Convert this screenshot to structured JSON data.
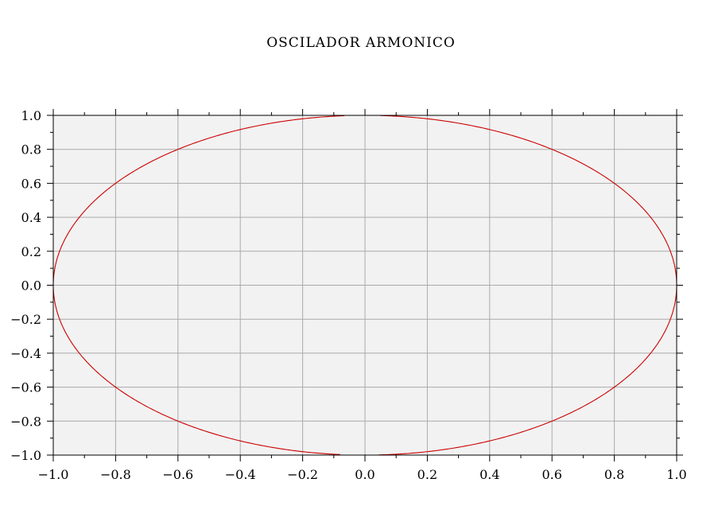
{
  "chart_data": {
    "type": "line",
    "title": "OSCILADOR ARMONICO",
    "xlabel": "",
    "ylabel": "",
    "xlim": [
      -1.0,
      1.0
    ],
    "ylim": [
      -1.0,
      1.0
    ],
    "x_ticks": [
      "−1.0",
      "−0.8",
      "−0.6",
      "−0.4",
      "−0.2",
      "0.0",
      "0.2",
      "0.4",
      "0.6",
      "0.8",
      "1.0"
    ],
    "y_ticks": [
      "1.0",
      "0.8",
      "0.6",
      "0.4",
      "0.2",
      "0.0",
      "−0.2",
      "−0.4",
      "−0.6",
      "−0.8",
      "−1.0"
    ],
    "grid": true,
    "series": [
      {
        "equation": "x^2 + y^2 = 1",
        "x": [
          1.0,
          0.951,
          0.809,
          0.588,
          0.309,
          0.0,
          -0.309,
          -0.588,
          -0.809,
          -0.951,
          -1.0,
          -0.951,
          -0.809,
          -0.588,
          -0.309,
          0.0,
          0.309,
          0.588,
          0.809,
          0.951,
          1.0
        ],
        "y": [
          0.0,
          0.309,
          0.588,
          0.809,
          0.951,
          1.0,
          0.951,
          0.809,
          0.588,
          0.309,
          0.0,
          -0.309,
          -0.588,
          -0.809,
          -0.951,
          -1.0,
          -0.951,
          -0.809,
          -0.588,
          -0.309,
          0.0
        ],
        "gaps_near_x": [
          0.0
        ],
        "color": "#cc0000"
      }
    ],
    "colors": {
      "background": "#f2f2f2",
      "grid": "#aaaaaa",
      "axis": "#000000",
      "curve": "#cc0000"
    }
  }
}
